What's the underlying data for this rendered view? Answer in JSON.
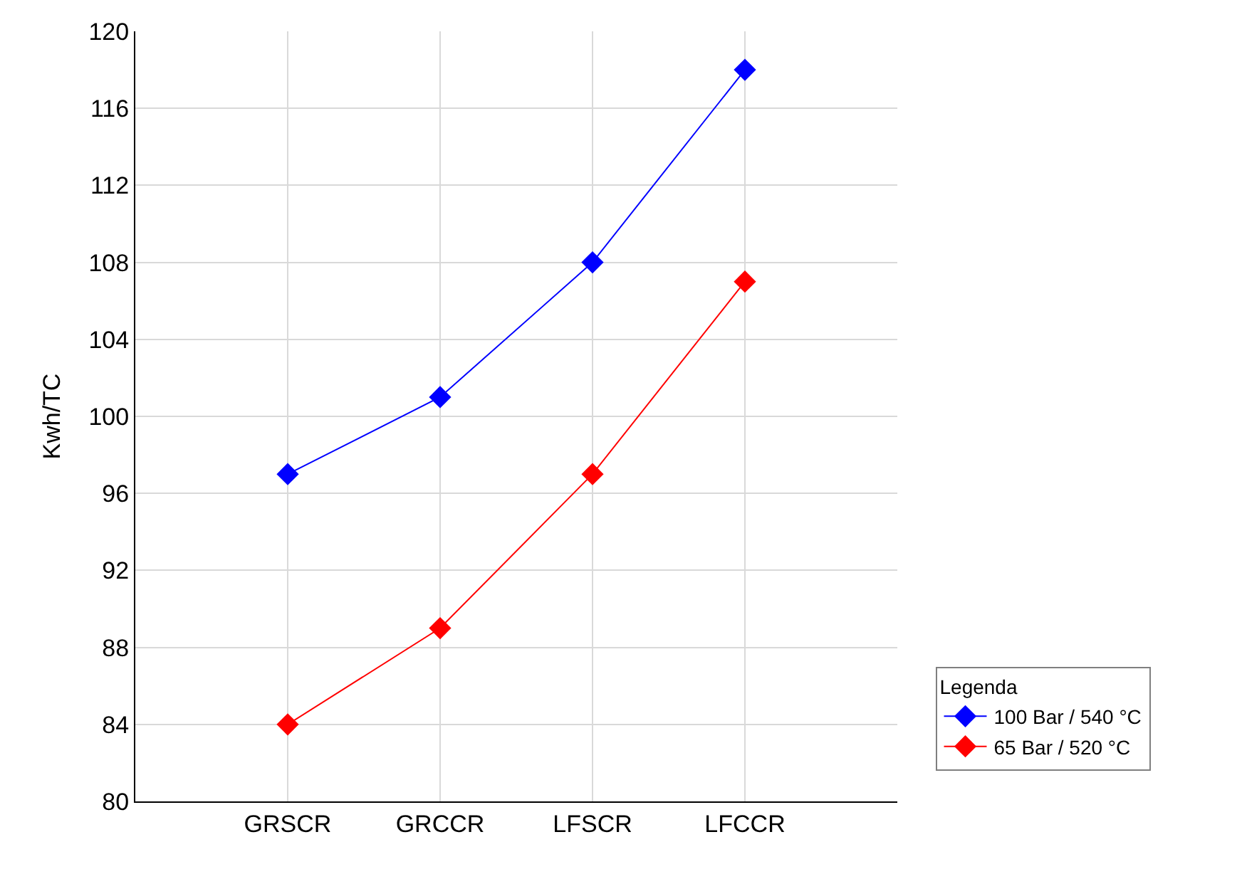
{
  "chart_data": {
    "type": "line",
    "ylabel": "Kwh/TC",
    "legend_title": "Legenda",
    "categories": [
      "GRSCR",
      "GRCCR",
      "LFSCR",
      "LFCCR"
    ],
    "series": [
      {
        "name": "100 Bar / 540 °C",
        "color": "#0000ff",
        "values": [
          97,
          101,
          108,
          118
        ]
      },
      {
        "name": "65 Bar / 520 °C",
        "color": "#ff0000",
        "values": [
          84,
          89,
          97,
          107
        ]
      }
    ],
    "ylim": [
      80,
      120
    ],
    "yticks": [
      80,
      84,
      88,
      92,
      96,
      100,
      104,
      108,
      112,
      116,
      120
    ],
    "grid": true,
    "legend": "bottom right",
    "marker": "diamond",
    "line_style": "solid"
  }
}
